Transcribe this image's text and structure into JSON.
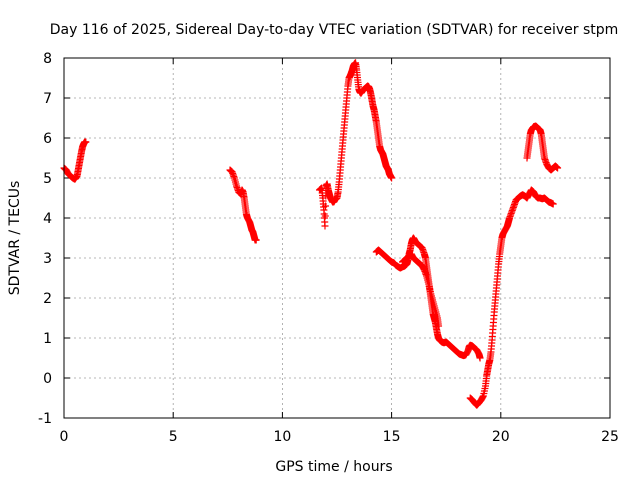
{
  "chart_data": {
    "type": "scatter",
    "title": "Day 116 of 2025, Sidereal Day-to-day VTEC variation (SDTVAR) for receiver stpm",
    "xlabel": "GPS time / hours",
    "ylabel": "SDTVAR / TECUs",
    "xlim": [
      0,
      25
    ],
    "ylim": [
      -1,
      8
    ],
    "x_ticks": [
      0,
      5,
      10,
      15,
      20,
      25
    ],
    "y_ticks": [
      -1,
      0,
      1,
      2,
      3,
      4,
      5,
      6,
      7,
      8
    ],
    "x_tick_labels": [
      "0",
      "5",
      "10",
      "15",
      "20",
      "25"
    ],
    "y_tick_labels": [
      "-1",
      "0",
      "1",
      "2",
      "3",
      "4",
      "5",
      "6",
      "7",
      "8"
    ],
    "grid": true,
    "marker": "plus",
    "colors": {
      "series": "#ff0000",
      "grid": "#a0a0a0",
      "axis": "#000000"
    },
    "series": [
      {
        "segments": [
          [
            [
              0.0,
              5.25
            ],
            [
              0.1,
              5.2
            ],
            [
              0.2,
              5.1
            ],
            [
              0.3,
              5.05
            ],
            [
              0.4,
              5.0
            ],
            [
              0.5,
              4.97
            ],
            [
              0.6,
              5.05
            ],
            [
              0.65,
              5.2
            ],
            [
              0.7,
              5.35
            ],
            [
              0.75,
              5.5
            ],
            [
              0.8,
              5.65
            ],
            [
              0.85,
              5.78
            ],
            [
              0.9,
              5.85
            ],
            [
              0.95,
              5.9
            ],
            [
              1.0,
              5.9
            ]
          ],
          [
            [
              7.6,
              5.2
            ],
            [
              7.7,
              5.15
            ],
            [
              7.8,
              5.0
            ],
            [
              7.9,
              4.8
            ],
            [
              8.0,
              4.65
            ],
            [
              8.1,
              4.6
            ],
            [
              8.15,
              4.7
            ],
            [
              8.2,
              4.65
            ],
            [
              8.25,
              4.5
            ],
            [
              8.3,
              4.3
            ],
            [
              8.35,
              4.1
            ],
            [
              8.4,
              4.0
            ],
            [
              8.5,
              3.9
            ],
            [
              8.55,
              3.8
            ],
            [
              8.6,
              3.7
            ],
            [
              8.65,
              3.65
            ],
            [
              8.7,
              3.55
            ],
            [
              8.75,
              3.45
            ],
            [
              8.8,
              3.45
            ]
          ],
          [
            [
              11.7,
              4.7
            ],
            [
              11.8,
              4.75
            ],
            [
              11.85,
              4.5
            ],
            [
              11.9,
              4.2
            ],
            [
              11.95,
              3.8
            ],
            [
              12.0,
              4.8
            ],
            [
              12.05,
              4.85
            ],
            [
              12.1,
              4.7
            ],
            [
              12.15,
              4.6
            ],
            [
              12.2,
              4.5
            ],
            [
              12.3,
              4.4
            ],
            [
              12.35,
              4.4
            ],
            [
              12.4,
              4.45
            ],
            [
              12.5,
              4.5
            ],
            [
              12.55,
              4.65
            ],
            [
              12.6,
              4.9
            ],
            [
              12.65,
              5.2
            ],
            [
              12.7,
              5.5
            ],
            [
              12.75,
              5.8
            ],
            [
              12.8,
              6.1
            ],
            [
              12.85,
              6.4
            ],
            [
              12.9,
              6.7
            ],
            [
              12.95,
              7.0
            ],
            [
              13.0,
              7.3
            ],
            [
              13.05,
              7.5
            ],
            [
              13.1,
              7.55
            ],
            [
              13.15,
              7.62
            ],
            [
              13.2,
              7.7
            ],
            [
              13.25,
              7.8
            ],
            [
              13.3,
              7.85
            ],
            [
              13.35,
              7.88
            ],
            [
              13.4,
              7.7
            ],
            [
              13.45,
              7.45
            ],
            [
              13.5,
              7.22
            ],
            [
              13.55,
              7.15
            ],
            [
              13.6,
              7.12
            ],
            [
              13.7,
              7.2
            ],
            [
              13.8,
              7.25
            ],
            [
              13.9,
              7.3
            ],
            [
              13.95,
              7.28
            ],
            [
              14.0,
              7.22
            ],
            [
              14.05,
              7.1
            ],
            [
              14.1,
              6.95
            ],
            [
              14.15,
              6.8
            ],
            [
              14.2,
              6.7
            ],
            [
              14.25,
              6.55
            ],
            [
              14.3,
              6.4
            ],
            [
              14.35,
              6.2
            ],
            [
              14.4,
              6.0
            ],
            [
              14.45,
              5.8
            ],
            [
              14.5,
              5.7
            ],
            [
              14.55,
              5.65
            ],
            [
              14.6,
              5.6
            ],
            [
              14.65,
              5.5
            ],
            [
              14.7,
              5.4
            ],
            [
              14.75,
              5.3
            ],
            [
              14.8,
              5.25
            ],
            [
              14.85,
              5.2
            ],
            [
              14.9,
              5.1
            ],
            [
              14.95,
              5.05
            ],
            [
              15.0,
              5.0
            ]
          ],
          [
            [
              14.3,
              3.15
            ],
            [
              14.4,
              3.2
            ],
            [
              14.5,
              3.15
            ],
            [
              14.6,
              3.1
            ],
            [
              14.7,
              3.05
            ],
            [
              14.8,
              3.0
            ],
            [
              14.9,
              2.95
            ],
            [
              15.0,
              2.9
            ],
            [
              15.1,
              2.88
            ],
            [
              15.2,
              2.82
            ],
            [
              15.3,
              2.78
            ],
            [
              15.4,
              2.75
            ],
            [
              15.5,
              2.78
            ],
            [
              15.6,
              2.8
            ],
            [
              15.7,
              2.85
            ],
            [
              15.75,
              2.95
            ],
            [
              15.8,
              3.1
            ],
            [
              15.85,
              3.2
            ],
            [
              15.9,
              3.35
            ],
            [
              15.95,
              3.45
            ],
            [
              16.0,
              3.5
            ],
            [
              16.05,
              3.45
            ],
            [
              16.1,
              3.4
            ],
            [
              16.2,
              3.35
            ],
            [
              16.3,
              3.3
            ],
            [
              16.4,
              3.25
            ],
            [
              16.5,
              3.1
            ],
            [
              16.55,
              3.0
            ],
            [
              16.6,
              2.8
            ],
            [
              16.65,
              2.6
            ],
            [
              16.7,
              2.4
            ],
            [
              16.75,
              2.2
            ],
            [
              16.8,
              2.0
            ],
            [
              16.85,
              1.8
            ],
            [
              16.9,
              1.6
            ],
            [
              16.95,
              1.5
            ],
            [
              17.0,
              1.4
            ],
            [
              17.05,
              1.25
            ],
            [
              17.1,
              1.1
            ],
            [
              17.15,
              1.0
            ],
            [
              17.2,
              0.95
            ],
            [
              17.3,
              0.9
            ],
            [
              17.4,
              0.88
            ],
            [
              17.5,
              0.9
            ],
            [
              17.6,
              0.85
            ],
            [
              17.7,
              0.8
            ],
            [
              17.8,
              0.75
            ],
            [
              17.9,
              0.7
            ],
            [
              18.0,
              0.65
            ],
            [
              18.1,
              0.6
            ],
            [
              18.2,
              0.58
            ],
            [
              18.3,
              0.56
            ],
            [
              18.4,
              0.58
            ],
            [
              18.5,
              0.68
            ],
            [
              18.55,
              0.78
            ],
            [
              18.6,
              0.82
            ],
            [
              18.7,
              0.8
            ],
            [
              18.8,
              0.75
            ],
            [
              18.9,
              0.7
            ],
            [
              19.0,
              0.6
            ],
            [
              19.05,
              0.5
            ]
          ],
          [
            [
              15.5,
              2.9
            ],
            [
              15.6,
              2.95
            ],
            [
              15.7,
              3.0
            ],
            [
              15.8,
              3.05
            ],
            [
              15.9,
              3.1
            ],
            [
              16.0,
              3.0
            ],
            [
              16.1,
              2.95
            ],
            [
              16.2,
              2.9
            ],
            [
              16.3,
              2.85
            ],
            [
              16.4,
              2.8
            ],
            [
              16.5,
              2.7
            ],
            [
              16.6,
              2.55
            ],
            [
              16.7,
              2.35
            ],
            [
              16.8,
              2.1
            ],
            [
              16.9,
              1.9
            ],
            [
              17.0,
              1.7
            ],
            [
              17.1,
              1.5
            ],
            [
              17.15,
              1.3
            ]
          ],
          [
            [
              18.6,
              -0.5
            ],
            [
              18.7,
              -0.55
            ],
            [
              18.8,
              -0.62
            ],
            [
              18.9,
              -0.68
            ],
            [
              19.0,
              -0.62
            ],
            [
              19.1,
              -0.55
            ],
            [
              19.2,
              -0.45
            ],
            [
              19.3,
              -0.2
            ],
            [
              19.35,
              0.05
            ],
            [
              19.4,
              0.2
            ],
            [
              19.45,
              0.35
            ],
            [
              19.5,
              0.45
            ],
            [
              19.55,
              0.65
            ],
            [
              19.6,
              0.95
            ],
            [
              19.65,
              1.3
            ],
            [
              19.7,
              1.65
            ],
            [
              19.75,
              1.95
            ],
            [
              19.8,
              2.25
            ],
            [
              19.85,
              2.55
            ],
            [
              19.9,
              2.85
            ],
            [
              19.95,
              3.1
            ],
            [
              20.0,
              3.3
            ],
            [
              20.05,
              3.5
            ],
            [
              20.1,
              3.6
            ],
            [
              20.2,
              3.7
            ],
            [
              20.3,
              3.8
            ],
            [
              20.35,
              3.9
            ],
            [
              20.4,
              4.0
            ],
            [
              20.5,
              4.15
            ],
            [
              20.6,
              4.3
            ],
            [
              20.7,
              4.45
            ],
            [
              20.8,
              4.5
            ],
            [
              20.9,
              4.55
            ],
            [
              21.0,
              4.58
            ],
            [
              21.1,
              4.55
            ],
            [
              21.2,
              4.5
            ],
            [
              21.3,
              4.6
            ],
            [
              21.4,
              4.7
            ],
            [
              21.5,
              4.65
            ],
            [
              21.6,
              4.55
            ],
            [
              21.7,
              4.5
            ],
            [
              21.8,
              4.5
            ],
            [
              21.9,
              4.48
            ],
            [
              22.0,
              4.5
            ],
            [
              22.1,
              4.45
            ],
            [
              22.2,
              4.4
            ],
            [
              22.3,
              4.38
            ],
            [
              22.4,
              4.35
            ]
          ],
          [
            [
              21.2,
              5.5
            ],
            [
              21.25,
              5.7
            ],
            [
              21.3,
              5.9
            ],
            [
              21.35,
              6.1
            ],
            [
              21.4,
              6.2
            ],
            [
              21.5,
              6.28
            ],
            [
              21.6,
              6.3
            ],
            [
              21.7,
              6.25
            ],
            [
              21.8,
              6.2
            ],
            [
              21.85,
              6.1
            ],
            [
              21.9,
              5.9
            ],
            [
              21.95,
              5.7
            ],
            [
              22.0,
              5.5
            ],
            [
              22.1,
              5.35
            ],
            [
              22.2,
              5.25
            ],
            [
              22.3,
              5.2
            ],
            [
              22.4,
              5.25
            ],
            [
              22.5,
              5.3
            ],
            [
              22.6,
              5.25
            ]
          ]
        ]
      }
    ]
  }
}
